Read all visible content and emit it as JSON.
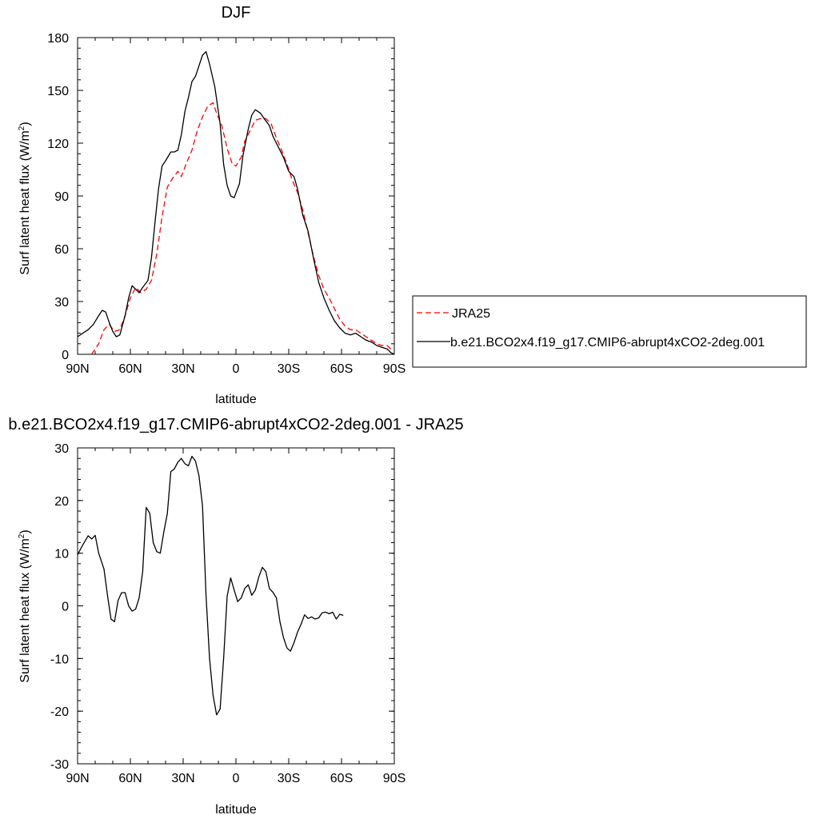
{
  "chart_data": [
    {
      "type": "line",
      "title": "DJF",
      "xlabel": "latitude",
      "ylabel": "Surf latent heat flux (W/m",
      "ylabel_sup": "2",
      "ylabel_close": ")",
      "xlim": [
        90,
        -90
      ],
      "ylim": [
        0,
        180
      ],
      "xticks": [
        {
          "value": 90,
          "label": "90N"
        },
        {
          "value": 60,
          "label": "60N"
        },
        {
          "value": 30,
          "label": "30N"
        },
        {
          "value": 0,
          "label": "0"
        },
        {
          "value": -30,
          "label": "30S"
        },
        {
          "value": -60,
          "label": "60S"
        },
        {
          "value": -90,
          "label": "90S"
        }
      ],
      "yticks": [
        0,
        30,
        60,
        90,
        120,
        150,
        180
      ],
      "legend_position": "right",
      "series": [
        {
          "name": "JRA25",
          "color": "#ff0000",
          "dash": "dashed",
          "points": [
            [
              82,
              0
            ],
            [
              78,
              6
            ],
            [
              75,
              14
            ],
            [
              72,
              17
            ],
            [
              69,
              13
            ],
            [
              66,
              14
            ],
            [
              63,
              22
            ],
            [
              60,
              32
            ],
            [
              57,
              38
            ],
            [
              54,
              35
            ],
            [
              51,
              37
            ],
            [
              48,
              42
            ],
            [
              45,
              57
            ],
            [
              42,
              78
            ],
            [
              39,
              95
            ],
            [
              36,
              100
            ],
            [
              33,
              104
            ],
            [
              31,
              101
            ],
            [
              28,
              109
            ],
            [
              25,
              116
            ],
            [
              22,
              127
            ],
            [
              19,
              135
            ],
            [
              16,
              141
            ],
            [
              13,
              143
            ],
            [
              11,
              137
            ],
            [
              8,
              130
            ],
            [
              5,
              117
            ],
            [
              2,
              108
            ],
            [
              0,
              107
            ],
            [
              -3,
              112
            ],
            [
              -5,
              121
            ],
            [
              -8,
              127
            ],
            [
              -11,
              133
            ],
            [
              -14,
              134
            ],
            [
              -17,
              134
            ],
            [
              -20,
              131
            ],
            [
              -23,
              123
            ],
            [
              -26,
              116
            ],
            [
              -29,
              108
            ],
            [
              -32,
              99
            ],
            [
              -35,
              92
            ],
            [
              -38,
              82
            ],
            [
              -41,
              69
            ],
            [
              -44,
              56
            ],
            [
              -47,
              45
            ],
            [
              -50,
              37
            ],
            [
              -53,
              32
            ],
            [
              -56,
              26
            ],
            [
              -59,
              20
            ],
            [
              -62,
              16
            ],
            [
              -65,
              14
            ],
            [
              -68,
              14
            ],
            [
              -71,
              12
            ],
            [
              -74,
              10
            ],
            [
              -77,
              8
            ],
            [
              -80,
              6
            ],
            [
              -83,
              5
            ],
            [
              -86,
              5
            ],
            [
              -88,
              3
            ]
          ]
        },
        {
          "name": "b.e21.BCO2x4.f19_g17.CMIP6-abrupt4xCO2-2deg.001",
          "color": "#000000",
          "dash": "solid",
          "points": [
            [
              90,
              10
            ],
            [
              87,
              12
            ],
            [
              84,
              14
            ],
            [
              81,
              17
            ],
            [
              78,
              22
            ],
            [
              76,
              25
            ],
            [
              74,
              24
            ],
            [
              72,
              18
            ],
            [
              70,
              13
            ],
            [
              68,
              10
            ],
            [
              66,
              11
            ],
            [
              63,
              22
            ],
            [
              61,
              32
            ],
            [
              59,
              39
            ],
            [
              57,
              37
            ],
            [
              55,
              35
            ],
            [
              53,
              38
            ],
            [
              50,
              42
            ],
            [
              48,
              55
            ],
            [
              46,
              75
            ],
            [
              44,
              94
            ],
            [
              42,
              107
            ],
            [
              40,
              110
            ],
            [
              37,
              115
            ],
            [
              35,
              115
            ],
            [
              33,
              116
            ],
            [
              31,
              125
            ],
            [
              29,
              138
            ],
            [
              27,
              146
            ],
            [
              25,
              155
            ],
            [
              23,
              158
            ],
            [
              21,
              164
            ],
            [
              19,
              170
            ],
            [
              17,
              172
            ],
            [
              15,
              165
            ],
            [
              12,
              152
            ],
            [
              9,
              131
            ],
            [
              7,
              108
            ],
            [
              5,
              96
            ],
            [
              3,
              90
            ],
            [
              1,
              89
            ],
            [
              -2,
              97
            ],
            [
              -4,
              113
            ],
            [
              -7,
              128
            ],
            [
              -9,
              136
            ],
            [
              -11,
              139
            ],
            [
              -14,
              137
            ],
            [
              -16,
              134
            ],
            [
              -19,
              130
            ],
            [
              -21,
              124
            ],
            [
              -24,
              118
            ],
            [
              -27,
              112
            ],
            [
              -30,
              104
            ],
            [
              -33,
              101
            ],
            [
              -35,
              94
            ],
            [
              -38,
              79
            ],
            [
              -41,
              70
            ],
            [
              -44,
              55
            ],
            [
              -47,
              41
            ],
            [
              -50,
              32
            ],
            [
              -53,
              25
            ],
            [
              -56,
              19
            ],
            [
              -59,
              15
            ],
            [
              -62,
              12
            ],
            [
              -65,
              11
            ],
            [
              -68,
              12
            ],
            [
              -71,
              10
            ],
            [
              -74,
              8
            ],
            [
              -77,
              7
            ],
            [
              -80,
              5
            ],
            [
              -83,
              4
            ],
            [
              -86,
              3
            ],
            [
              -88,
              1
            ],
            [
              -90,
              0
            ]
          ]
        }
      ]
    },
    {
      "type": "line",
      "title": "b.e21.BCO2x4.f19_g17.CMIP6-abrupt4xCO2-2deg.001 - JRA25",
      "xlabel": "latitude",
      "ylabel": "Surf latent heat flux (W/m",
      "ylabel_sup": "2",
      "ylabel_close": ")",
      "xlim": [
        90,
        -90
      ],
      "ylim": [
        -30,
        30
      ],
      "xticks": [
        {
          "value": 90,
          "label": "90N"
        },
        {
          "value": 60,
          "label": "60N"
        },
        {
          "value": 30,
          "label": "30N"
        },
        {
          "value": 0,
          "label": "0"
        },
        {
          "value": -30,
          "label": "30S"
        },
        {
          "value": -60,
          "label": "60S"
        },
        {
          "value": -90,
          "label": "90S"
        }
      ],
      "yticks": [
        -30,
        -20,
        -10,
        0,
        10,
        20,
        30
      ],
      "series": [
        {
          "name": "",
          "color": "#000000",
          "dash": "solid",
          "points": [
            [
              90,
              9.7
            ],
            [
              87,
              11.6
            ],
            [
              84,
              13.3
            ],
            [
              82,
              12.7
            ],
            [
              80,
              13.4
            ],
            [
              78,
              10
            ],
            [
              75,
              7
            ],
            [
              73,
              2
            ],
            [
              71,
              -2.5
            ],
            [
              69,
              -3
            ],
            [
              67,
              1
            ],
            [
              65,
              2.5
            ],
            [
              63,
              2.5
            ],
            [
              61,
              0
            ],
            [
              59,
              -1
            ],
            [
              57,
              -0.6
            ],
            [
              55,
              1.5
            ],
            [
              53,
              6.5
            ],
            [
              51,
              18.7
            ],
            [
              49,
              17.6
            ],
            [
              47,
              12
            ],
            [
              45,
              10.3
            ],
            [
              43,
              10
            ],
            [
              41,
              14
            ],
            [
              39,
              17.5
            ],
            [
              37,
              25.5
            ],
            [
              35,
              26
            ],
            [
              33,
              27.3
            ],
            [
              31,
              28
            ],
            [
              29,
              27
            ],
            [
              27,
              26.6
            ],
            [
              25,
              28.4
            ],
            [
              23,
              27.5
            ],
            [
              21,
              24.7
            ],
            [
              19,
              19
            ],
            [
              17,
              2
            ],
            [
              15,
              -10
            ],
            [
              13,
              -17
            ],
            [
              11,
              -20.7
            ],
            [
              9,
              -19.6
            ],
            [
              7,
              -10
            ],
            [
              5,
              1.8
            ],
            [
              3,
              5.3
            ],
            [
              1,
              3
            ],
            [
              -1,
              0.8
            ],
            [
              -3,
              1.5
            ],
            [
              -5,
              3.3
            ],
            [
              -7,
              4
            ],
            [
              -9,
              2
            ],
            [
              -11,
              3
            ],
            [
              -13,
              5.5
            ],
            [
              -15,
              7.3
            ],
            [
              -17,
              6.5
            ],
            [
              -19,
              3.3
            ],
            [
              -21,
              2.6
            ],
            [
              -23,
              1.5
            ],
            [
              -25,
              -3
            ],
            [
              -27,
              -6
            ],
            [
              -29,
              -8
            ],
            [
              -31,
              -8.6
            ],
            [
              -33,
              -7
            ],
            [
              -35,
              -5
            ],
            [
              -37,
              -3.5
            ],
            [
              -39,
              -1.7
            ],
            [
              -41,
              -2.4
            ],
            [
              -43,
              -2.1
            ],
            [
              -45,
              -2.5
            ],
            [
              -47,
              -2.3
            ],
            [
              -49,
              -1.3
            ],
            [
              -51,
              -1.2
            ],
            [
              -53,
              -1.5
            ],
            [
              -55,
              -1.2
            ],
            [
              -57,
              -2.5
            ],
            [
              -59,
              -1.6
            ],
            [
              -61,
              -1.8
            ]
          ]
        }
      ]
    }
  ]
}
